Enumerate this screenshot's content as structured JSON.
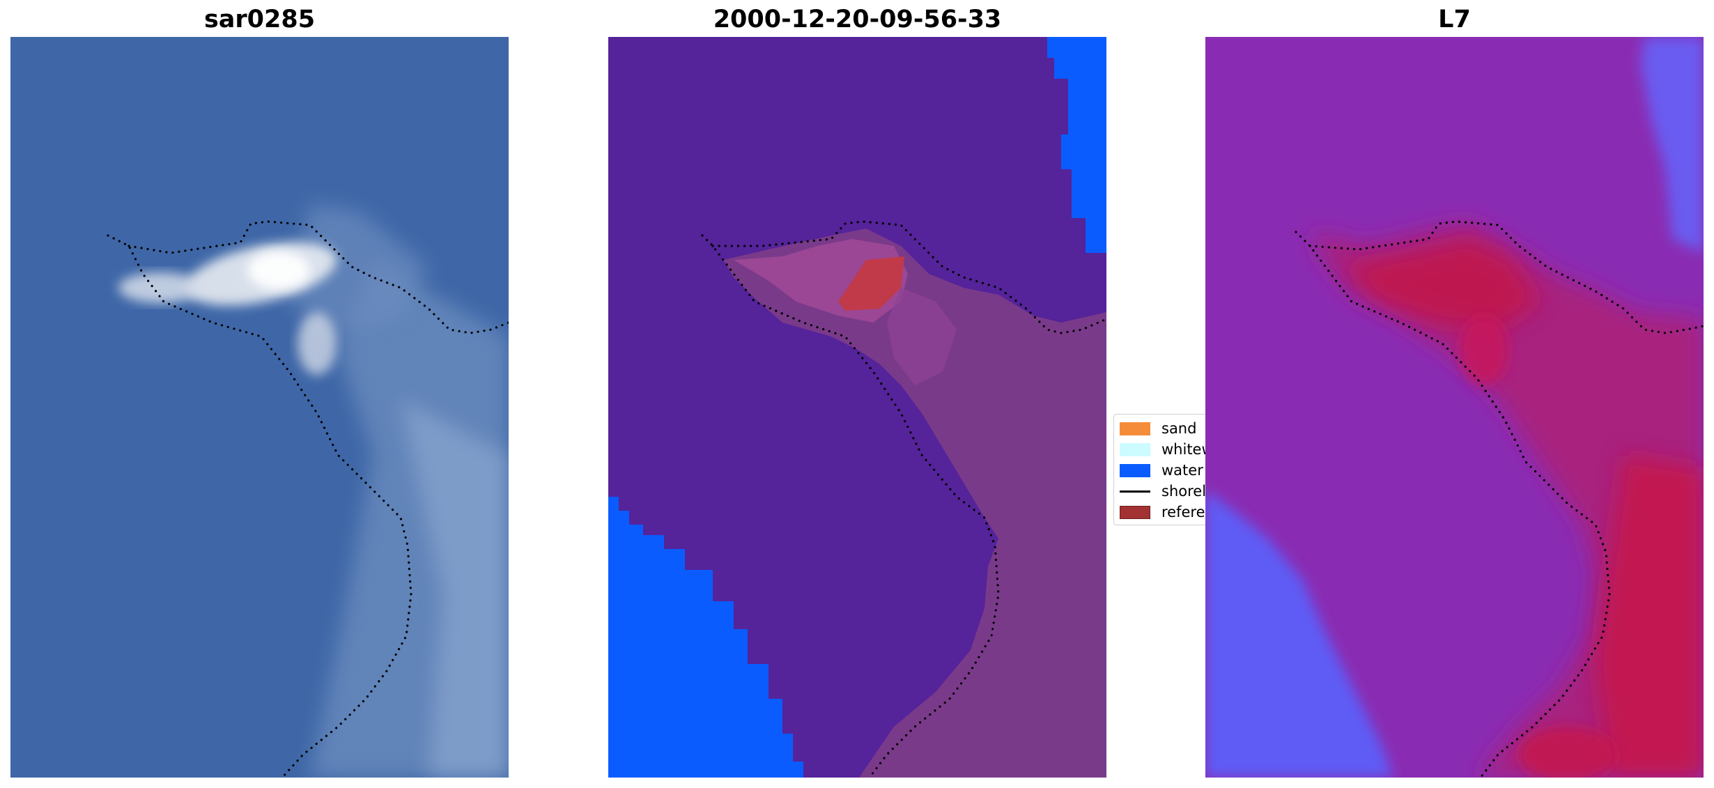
{
  "panels": {
    "left": {
      "title": "sar0285"
    },
    "middle": {
      "title": "2000-12-20-09-56-33"
    },
    "right": {
      "title": "L7"
    }
  },
  "legend": {
    "items": [
      {
        "label": "sand",
        "color": "#f58c3a",
        "kind": "patch"
      },
      {
        "label": "whitewater",
        "color": "#ccfcff",
        "kind": "patch"
      },
      {
        "label": "water",
        "color": "#0a5cff",
        "kind": "patch"
      },
      {
        "label": "shoreline",
        "color": "#000000",
        "kind": "line"
      },
      {
        "label": "reference",
        "color": "#a33232",
        "kind": "patch"
      }
    ]
  },
  "colors": {
    "rgb_water": "#3f67a7",
    "rgb_foam": "#f2f4f6",
    "class_background": "#55239a",
    "class_water": "#0a5cff",
    "class_land": "#7a3a8a",
    "class_reference": "#c03a4a",
    "index_background": "#8a2cb3",
    "index_high": "#c7154a",
    "index_low": "#5f5cf5"
  }
}
